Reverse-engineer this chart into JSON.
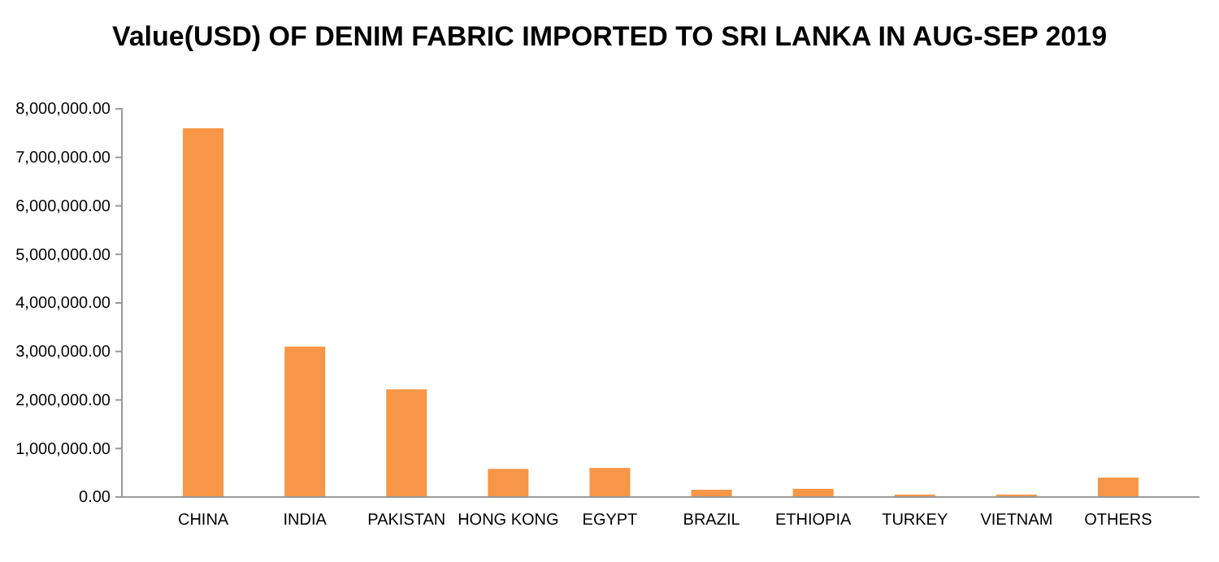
{
  "chart_data": {
    "type": "bar",
    "title": "Value(USD) OF DENIM FABRIC IMPORTED TO SRI LANKA IN AUG-SEP 2019",
    "categories": [
      "CHINA",
      "INDIA",
      "PAKISTAN",
      "HONG KONG",
      "EGYPT",
      "BRAZIL",
      "ETHIOPIA",
      "TURKEY",
      "VIETNAM",
      "OTHERS"
    ],
    "values": [
      7600000,
      3100000,
      2220000,
      580000,
      600000,
      150000,
      170000,
      50000,
      50000,
      400000
    ],
    "color": "#f79646",
    "ylim": [
      0,
      8000000
    ],
    "yticks": [
      {
        "value": 0,
        "label": "0.00"
      },
      {
        "value": 1000000,
        "label": "1,000,000.00"
      },
      {
        "value": 2000000,
        "label": "2,000,000.00"
      },
      {
        "value": 3000000,
        "label": "3,000,000.00"
      },
      {
        "value": 4000000,
        "label": "4,000,000.00"
      },
      {
        "value": 5000000,
        "label": "5,000,000.00"
      },
      {
        "value": 6000000,
        "label": "6,000,000.00"
      },
      {
        "value": 7000000,
        "label": "7,000,000.00"
      },
      {
        "value": 8000000,
        "label": "8,000,000.00"
      }
    ]
  }
}
